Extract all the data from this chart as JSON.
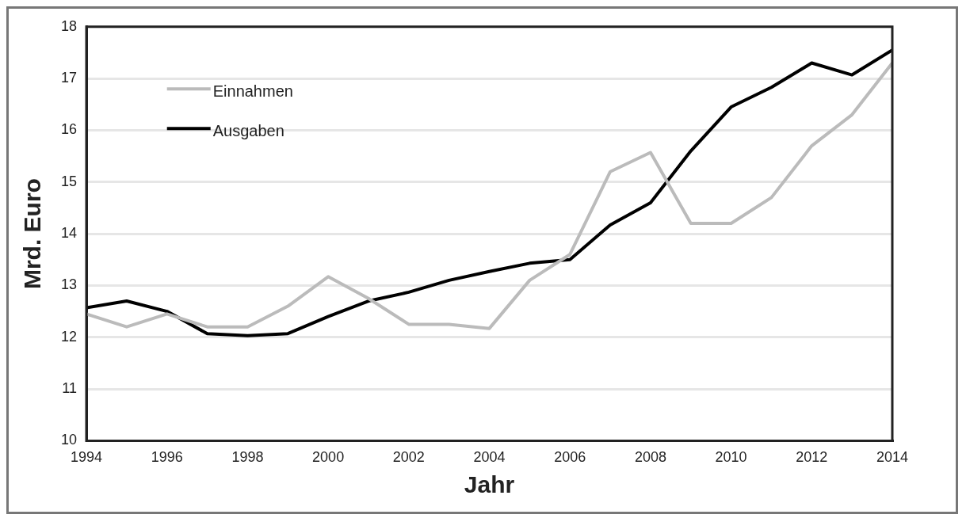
{
  "chart_data": {
    "type": "line",
    "xlabel": "Jahr",
    "ylabel": "Mrd. Euro",
    "x": [
      1994,
      1995,
      1996,
      1997,
      1998,
      1999,
      2000,
      2001,
      2002,
      2003,
      2004,
      2005,
      2006,
      2007,
      2008,
      2009,
      2010,
      2011,
      2012,
      2013,
      2014
    ],
    "series": [
      {
        "name": "Einnahmen",
        "color": "#bbbbbb",
        "values": [
          12.45,
          12.2,
          12.45,
          12.2,
          12.2,
          12.6,
          13.17,
          12.75,
          12.25,
          12.25,
          12.17,
          13.1,
          13.6,
          15.2,
          15.57,
          14.2,
          14.2,
          14.7,
          15.7,
          16.3,
          17.3
        ]
      },
      {
        "name": "Ausgaben",
        "color": "#000000",
        "values": [
          12.57,
          12.7,
          12.5,
          12.07,
          12.03,
          12.07,
          12.4,
          12.7,
          12.87,
          13.1,
          13.27,
          13.43,
          13.5,
          14.17,
          14.6,
          15.6,
          16.45,
          16.83,
          17.3,
          17.07,
          17.55
        ]
      }
    ],
    "xlim": [
      1994,
      2014
    ],
    "xticks": [
      1994,
      1996,
      1998,
      2000,
      2002,
      2004,
      2006,
      2008,
      2010,
      2012,
      2014
    ],
    "ylim": [
      10,
      18
    ],
    "yticks": [
      10,
      11,
      12,
      13,
      14,
      15,
      16,
      17,
      18
    ],
    "grid": "y",
    "legend": "top left",
    "marker": "none",
    "line_style": "solid"
  }
}
